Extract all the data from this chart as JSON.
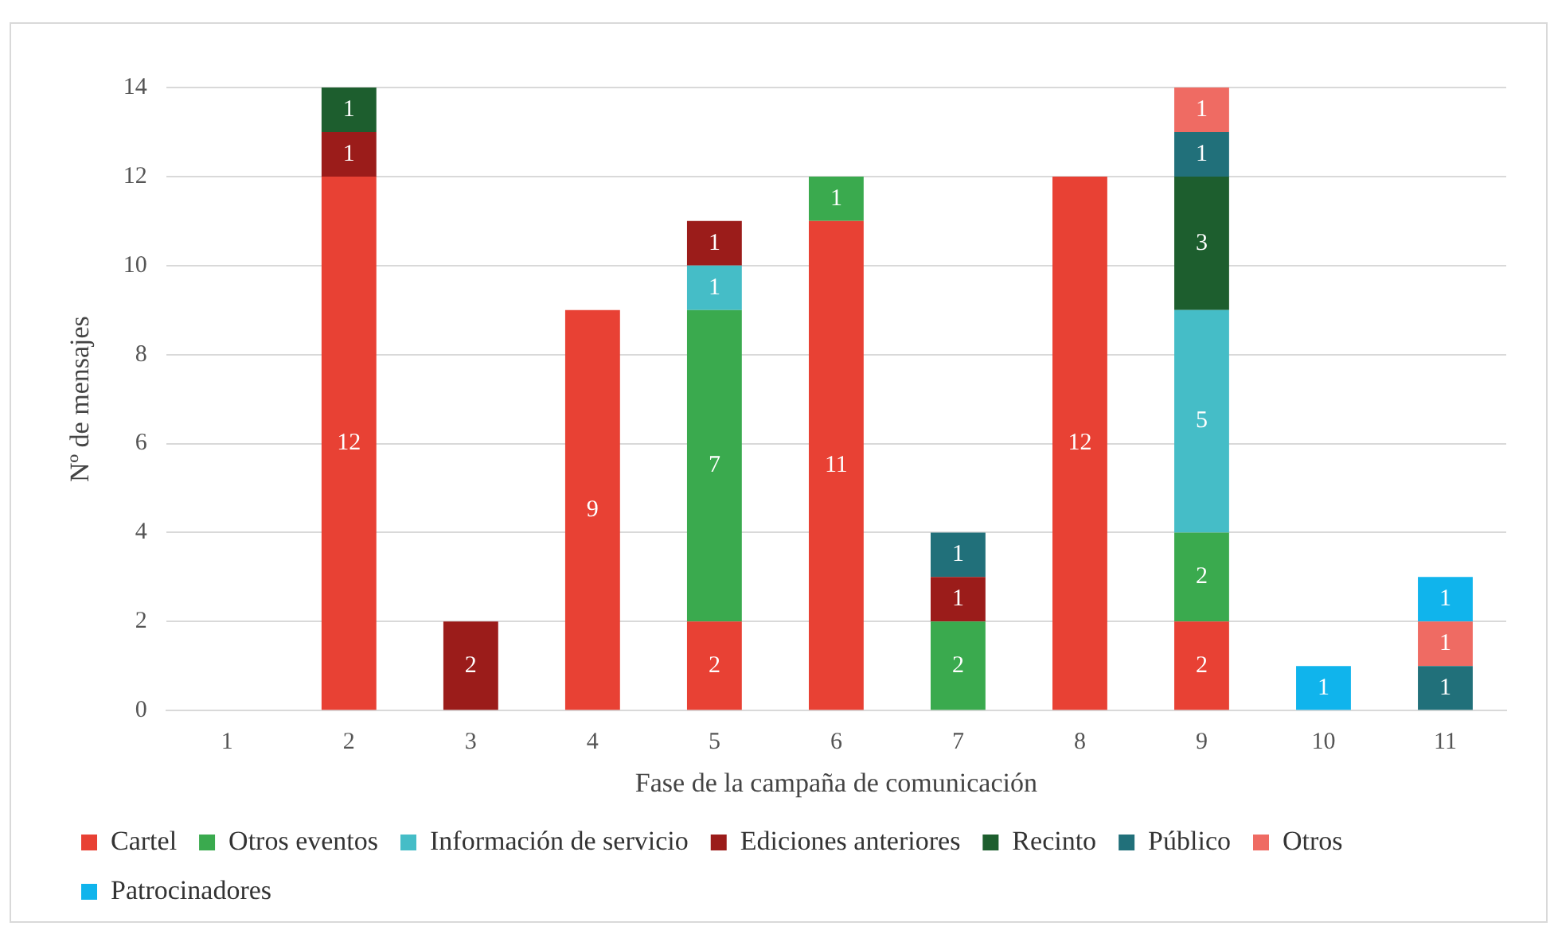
{
  "chart_data": {
    "type": "bar",
    "stacked": true,
    "xlabel": "Fase de la campaña de comunicación",
    "ylabel": "Nº de mensajes",
    "categories": [
      "1",
      "2",
      "3",
      "4",
      "5",
      "6",
      "7",
      "8",
      "9",
      "10",
      "11"
    ],
    "series": [
      {
        "name": "Cartel",
        "color": "#e84134",
        "values": [
          null,
          12,
          null,
          9,
          2,
          11,
          null,
          12,
          2,
          null,
          null
        ]
      },
      {
        "name": "Otros eventos",
        "color": "#3aaa4e",
        "values": [
          null,
          null,
          null,
          null,
          7,
          1,
          2,
          null,
          2,
          null,
          null
        ]
      },
      {
        "name": "Información de servicio",
        "color": "#45bdc7",
        "values": [
          null,
          null,
          null,
          null,
          1,
          null,
          null,
          null,
          5,
          null,
          null
        ]
      },
      {
        "name": "Ediciones anteriores",
        "color": "#9b1c1a",
        "values": [
          null,
          1,
          2,
          null,
          1,
          null,
          1,
          null,
          null,
          null,
          null
        ]
      },
      {
        "name": "Recinto",
        "color": "#1d5e2e",
        "values": [
          null,
          1,
          null,
          null,
          null,
          null,
          null,
          null,
          3,
          null,
          null
        ]
      },
      {
        "name": "Público",
        "color": "#21707a",
        "values": [
          null,
          null,
          null,
          null,
          null,
          null,
          1,
          null,
          1,
          null,
          1
        ]
      },
      {
        "name": "Otros",
        "color": "#ef6b63",
        "values": [
          null,
          null,
          null,
          null,
          null,
          null,
          null,
          null,
          1,
          null,
          1
        ]
      },
      {
        "name": "Patrocinadores",
        "color": "#10b4ec",
        "values": [
          null,
          null,
          null,
          null,
          null,
          null,
          null,
          null,
          null,
          1,
          1
        ]
      }
    ],
    "ylim": [
      0,
      14
    ],
    "yticks": [
      0,
      2,
      4,
      6,
      8,
      10,
      12,
      14
    ],
    "grid": "y",
    "legend": "bottom",
    "data_labels": true
  }
}
